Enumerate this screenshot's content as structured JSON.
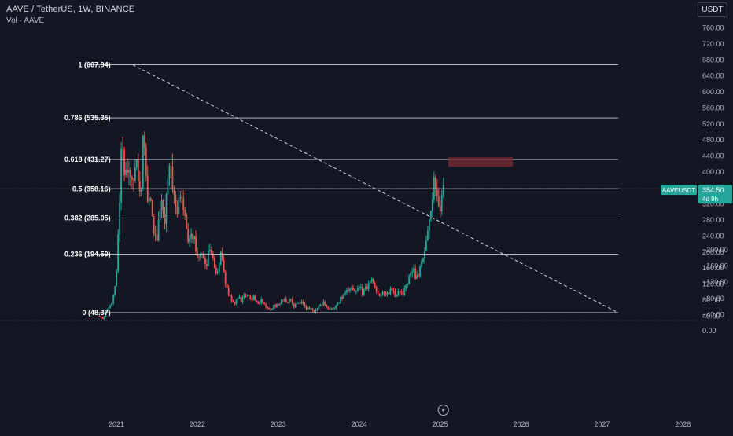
{
  "header": {
    "symbol_title": "AAVE / TetherUS, 1W, BINANCE",
    "volume_label": "Vol · AAVE",
    "currency_button": "USDT"
  },
  "colors": {
    "background": "#131722",
    "up": "#26a69a",
    "down": "#ef5350",
    "fib_line": "#c8ccd6",
    "axis_text": "#b2b5be",
    "zone": "#7a2a33"
  },
  "icons": {
    "replay": "lightning-bolt-icon"
  },
  "chart_data": [
    {
      "type": "candlestick",
      "title": "AAVE / TetherUS, 1W, BINANCE",
      "ylim": [
        30,
        780
      ],
      "y_ticks": [
        40,
        80,
        120,
        160,
        200,
        240,
        280,
        320,
        360,
        400,
        440,
        480,
        520,
        560,
        600,
        640,
        680,
        720,
        760
      ],
      "y_tick_labels": [
        "40.00",
        "80.00",
        "120.00",
        "160.00",
        "200.00",
        "240.00",
        "280.00",
        "320.00",
        "360.00",
        "400.00",
        "440.00",
        "480.00",
        "520.00",
        "560.00",
        "600.00",
        "640.00",
        "680.00",
        "720.00",
        "760.00"
      ],
      "xlim": [
        2020.6,
        2028.1
      ],
      "x_ticks": [
        2021,
        2022,
        2023,
        2024,
        2025,
        2026,
        2027,
        2028
      ],
      "x_tick_labels": [
        "2021",
        "2022",
        "2023",
        "2024",
        "2025",
        "2026",
        "2027",
        "2028"
      ],
      "price_anchors": [
        [
          2020.79,
          40
        ],
        [
          2020.82,
          30
        ],
        [
          2020.9,
          60
        ],
        [
          2020.95,
          80
        ],
        [
          2021.0,
          140
        ],
        [
          2021.03,
          280
        ],
        [
          2021.06,
          460
        ],
        [
          2021.1,
          400
        ],
        [
          2021.15,
          420
        ],
        [
          2021.2,
          360
        ],
        [
          2021.25,
          420
        ],
        [
          2021.3,
          340
        ],
        [
          2021.34,
          500
        ],
        [
          2021.38,
          300
        ],
        [
          2021.42,
          360
        ],
        [
          2021.46,
          260
        ],
        [
          2021.5,
          240
        ],
        [
          2021.55,
          320
        ],
        [
          2021.6,
          280
        ],
        [
          2021.65,
          420
        ],
        [
          2021.7,
          340
        ],
        [
          2021.75,
          300
        ],
        [
          2021.8,
          340
        ],
        [
          2021.85,
          280
        ],
        [
          2021.9,
          220
        ],
        [
          2021.95,
          240
        ],
        [
          2022.0,
          180
        ],
        [
          2022.05,
          200
        ],
        [
          2022.1,
          160
        ],
        [
          2022.15,
          220
        ],
        [
          2022.2,
          170
        ],
        [
          2022.25,
          140
        ],
        [
          2022.3,
          200
        ],
        [
          2022.35,
          120
        ],
        [
          2022.4,
          90
        ],
        [
          2022.45,
          70
        ],
        [
          2022.5,
          90
        ],
        [
          2022.55,
          80
        ],
        [
          2022.6,
          100
        ],
        [
          2022.65,
          80
        ],
        [
          2022.7,
          85
        ],
        [
          2022.75,
          70
        ],
        [
          2022.8,
          80
        ],
        [
          2022.85,
          60
        ],
        [
          2022.9,
          55
        ],
        [
          2022.95,
          65
        ],
        [
          2023.0,
          70
        ],
        [
          2023.05,
          85
        ],
        [
          2023.1,
          75
        ],
        [
          2023.15,
          80
        ],
        [
          2023.2,
          65
        ],
        [
          2023.25,
          70
        ],
        [
          2023.3,
          75
        ],
        [
          2023.35,
          60
        ],
        [
          2023.4,
          60
        ],
        [
          2023.45,
          50
        ],
        [
          2023.5,
          65
        ],
        [
          2023.55,
          75
        ],
        [
          2023.6,
          60
        ],
        [
          2023.65,
          55
        ],
        [
          2023.7,
          60
        ],
        [
          2023.75,
          75
        ],
        [
          2023.8,
          90
        ],
        [
          2023.85,
          100
        ],
        [
          2023.9,
          110
        ],
        [
          2023.95,
          105
        ],
        [
          2024.0,
          110
        ],
        [
          2024.05,
          100
        ],
        [
          2024.1,
          115
        ],
        [
          2024.15,
          130
        ],
        [
          2024.2,
          110
        ],
        [
          2024.25,
          90
        ],
        [
          2024.3,
          100
        ],
        [
          2024.35,
          95
        ],
        [
          2024.4,
          110
        ],
        [
          2024.45,
          90
        ],
        [
          2024.5,
          100
        ],
        [
          2024.55,
          95
        ],
        [
          2024.6,
          130
        ],
        [
          2024.65,
          150
        ],
        [
          2024.7,
          140
        ],
        [
          2024.75,
          160
        ],
        [
          2024.8,
          190
        ],
        [
          2024.85,
          260
        ],
        [
          2024.9,
          330
        ],
        [
          2024.93,
          380
        ],
        [
          2024.96,
          350
        ],
        [
          2025.0,
          300
        ],
        [
          2025.02,
          340
        ],
        [
          2025.04,
          354.5
        ]
      ],
      "volume_panel": {
        "ylim": [
          -210,
          0
        ],
        "y_ticks": [
          0,
          -40,
          -80,
          -120,
          -160,
          -200
        ],
        "y_tick_labels": [
          "0.00",
          "−40.00",
          "−80.00",
          "−120.00",
          "−160.00",
          "−200.00"
        ]
      },
      "fib_levels": [
        {
          "label": "1 (667.94)",
          "value": 667.94
        },
        {
          "label": "0.786 (535.35)",
          "value": 535.35
        },
        {
          "label": "0.618 (431.27)",
          "value": 431.27
        },
        {
          "label": "0.5 (358.16)",
          "value": 358.16
        },
        {
          "label": "0.382 (285.05)",
          "value": 285.05
        },
        {
          "label": "0.236 (194.59)",
          "value": 194.59
        },
        {
          "label": "0 (48.37)",
          "value": 48.37
        }
      ],
      "fib_x_range": [
        2021.2,
        2027.2
      ],
      "trendline": {
        "from": [
          2021.2,
          667.94
        ],
        "to": [
          2027.2,
          48.37
        ]
      },
      "zone": {
        "x": [
          2025.1,
          2025.9
        ],
        "y": [
          413,
          437
        ]
      },
      "current_price": {
        "symbol": "AAVEUSDT",
        "price_label": "354.50",
        "countdown": "4d 9h",
        "value": 354.5
      },
      "reference_line": 359
    }
  ]
}
